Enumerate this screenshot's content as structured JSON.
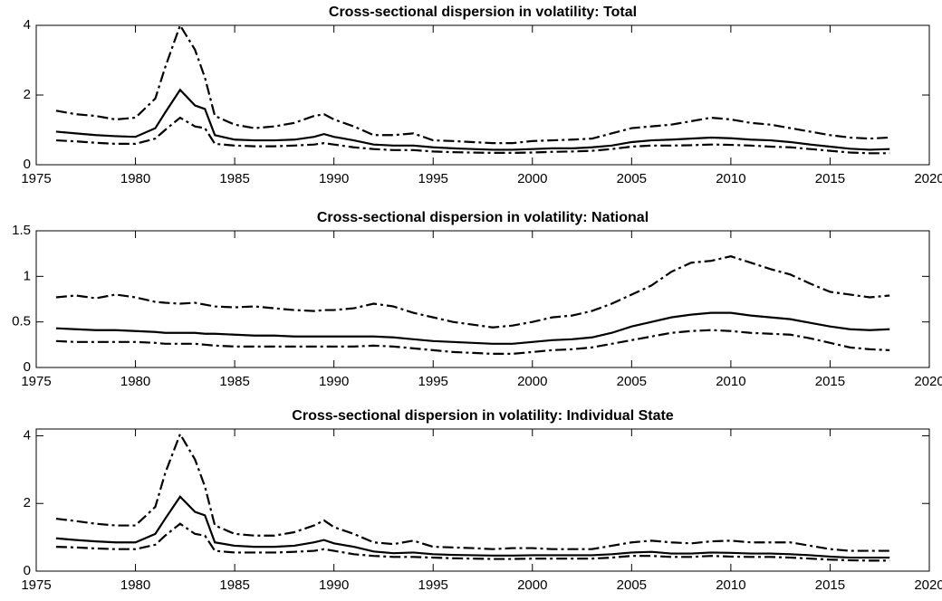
{
  "chart_data": [
    {
      "type": "line",
      "title": "Cross-sectional dispersion in volatility: Total",
      "x": [
        1976,
        1977,
        1978,
        1979,
        1980,
        1981,
        1981.5,
        1982.25,
        1983,
        1983.5,
        1984,
        1985,
        1986,
        1987,
        1988,
        1989,
        1989.5,
        1990,
        1991,
        1992,
        1993,
        1994,
        1995,
        1996,
        1997,
        1998,
        1999,
        2000,
        2001,
        2002,
        2003,
        2004,
        2005,
        2006,
        2007,
        2008,
        2009,
        2010,
        2011,
        2012,
        2013,
        2014,
        2015,
        2016,
        2017,
        2018
      ],
      "series": [
        {
          "color": "#000000",
          "dash": "dashdot",
          "values": [
            1.55,
            1.45,
            1.4,
            1.3,
            1.35,
            1.9,
            2.8,
            4.0,
            3.3,
            2.5,
            1.4,
            1.15,
            1.05,
            1.1,
            1.2,
            1.4,
            1.45,
            1.3,
            1.1,
            0.85,
            0.85,
            0.9,
            0.7,
            0.68,
            0.65,
            0.62,
            0.62,
            0.68,
            0.7,
            0.72,
            0.75,
            0.9,
            1.05,
            1.1,
            1.15,
            1.25,
            1.35,
            1.3,
            1.2,
            1.15,
            1.05,
            0.95,
            0.85,
            0.78,
            0.75,
            0.78
          ]
        },
        {
          "color": "#000000",
          "dash": "solid",
          "values": [
            0.95,
            0.9,
            0.85,
            0.82,
            0.8,
            1.05,
            1.5,
            2.15,
            1.7,
            1.6,
            0.85,
            0.72,
            0.7,
            0.7,
            0.72,
            0.8,
            0.88,
            0.8,
            0.7,
            0.58,
            0.55,
            0.55,
            0.5,
            0.47,
            0.45,
            0.43,
            0.43,
            0.45,
            0.47,
            0.47,
            0.5,
            0.55,
            0.65,
            0.7,
            0.72,
            0.75,
            0.78,
            0.76,
            0.72,
            0.7,
            0.65,
            0.58,
            0.52,
            0.46,
            0.43,
            0.45
          ]
        },
        {
          "color": "#000000",
          "dash": "dashdot",
          "values": [
            0.7,
            0.67,
            0.63,
            0.6,
            0.6,
            0.75,
            1.0,
            1.35,
            1.1,
            1.05,
            0.6,
            0.55,
            0.53,
            0.53,
            0.55,
            0.58,
            0.62,
            0.58,
            0.5,
            0.45,
            0.42,
            0.42,
            0.38,
            0.36,
            0.35,
            0.34,
            0.34,
            0.35,
            0.37,
            0.38,
            0.4,
            0.45,
            0.52,
            0.55,
            0.55,
            0.56,
            0.58,
            0.57,
            0.55,
            0.52,
            0.5,
            0.45,
            0.4,
            0.35,
            0.33,
            0.33
          ]
        }
      ],
      "xlim": [
        1975,
        2020
      ],
      "xticks": [
        1975,
        1980,
        1985,
        1990,
        1995,
        2000,
        2005,
        2010,
        2015,
        2020
      ],
      "ylim": [
        0,
        4
      ],
      "yticks": [
        0,
        2,
        4
      ]
    },
    {
      "type": "line",
      "title": "Cross-sectional dispersion in volatility: National",
      "x": [
        1976,
        1977,
        1978,
        1979,
        1980,
        1981,
        1981.5,
        1982.25,
        1983,
        1983.5,
        1984,
        1985,
        1986,
        1987,
        1988,
        1989,
        1989.5,
        1990,
        1991,
        1992,
        1993,
        1994,
        1995,
        1996,
        1997,
        1998,
        1999,
        2000,
        2001,
        2002,
        2003,
        2004,
        2005,
        2006,
        2007,
        2008,
        2009,
        2010,
        2011,
        2012,
        2013,
        2014,
        2015,
        2016,
        2017,
        2018
      ],
      "series": [
        {
          "color": "#000000",
          "dash": "dashdot",
          "values": [
            0.77,
            0.79,
            0.76,
            0.8,
            0.77,
            0.72,
            0.71,
            0.7,
            0.71,
            0.69,
            0.67,
            0.66,
            0.67,
            0.65,
            0.63,
            0.62,
            0.63,
            0.63,
            0.65,
            0.7,
            0.67,
            0.6,
            0.55,
            0.5,
            0.47,
            0.44,
            0.46,
            0.5,
            0.55,
            0.57,
            0.62,
            0.7,
            0.8,
            0.9,
            1.05,
            1.15,
            1.17,
            1.22,
            1.15,
            1.08,
            1.02,
            0.92,
            0.83,
            0.8,
            0.77,
            0.79
          ]
        },
        {
          "color": "#000000",
          "dash": "solid",
          "values": [
            0.43,
            0.42,
            0.41,
            0.41,
            0.4,
            0.39,
            0.38,
            0.38,
            0.38,
            0.37,
            0.37,
            0.36,
            0.35,
            0.35,
            0.34,
            0.34,
            0.34,
            0.34,
            0.34,
            0.34,
            0.33,
            0.31,
            0.29,
            0.28,
            0.27,
            0.26,
            0.26,
            0.28,
            0.3,
            0.31,
            0.33,
            0.38,
            0.45,
            0.5,
            0.55,
            0.58,
            0.6,
            0.6,
            0.57,
            0.55,
            0.53,
            0.49,
            0.45,
            0.42,
            0.41,
            0.42
          ]
        },
        {
          "color": "#000000",
          "dash": "dashdot",
          "values": [
            0.29,
            0.28,
            0.28,
            0.28,
            0.28,
            0.27,
            0.26,
            0.26,
            0.26,
            0.25,
            0.24,
            0.23,
            0.23,
            0.23,
            0.23,
            0.23,
            0.23,
            0.23,
            0.23,
            0.24,
            0.23,
            0.21,
            0.19,
            0.17,
            0.16,
            0.15,
            0.15,
            0.17,
            0.19,
            0.2,
            0.22,
            0.26,
            0.3,
            0.34,
            0.38,
            0.4,
            0.41,
            0.4,
            0.38,
            0.37,
            0.36,
            0.32,
            0.27,
            0.22,
            0.2,
            0.19
          ]
        }
      ],
      "xlim": [
        1975,
        2020
      ],
      "xticks": [
        1975,
        1980,
        1985,
        1990,
        1995,
        2000,
        2005,
        2010,
        2015,
        2020
      ],
      "ylim": [
        0,
        1.5
      ],
      "yticks": [
        0,
        0.5,
        1,
        1.5
      ]
    },
    {
      "type": "line",
      "title": "Cross-sectional dispersion in volatility: Individual State",
      "x": [
        1976,
        1977,
        1978,
        1979,
        1980,
        1981,
        1981.5,
        1982.25,
        1983,
        1983.5,
        1984,
        1985,
        1986,
        1987,
        1988,
        1989,
        1989.5,
        1990,
        1991,
        1992,
        1993,
        1994,
        1995,
        1996,
        1997,
        1998,
        1999,
        2000,
        2001,
        2002,
        2003,
        2004,
        2005,
        2006,
        2007,
        2008,
        2009,
        2010,
        2011,
        2012,
        2013,
        2014,
        2015,
        2016,
        2017,
        2018
      ],
      "series": [
        {
          "color": "#000000",
          "dash": "dashdot",
          "values": [
            1.55,
            1.48,
            1.4,
            1.35,
            1.35,
            1.9,
            2.9,
            4.05,
            3.3,
            2.5,
            1.35,
            1.1,
            1.05,
            1.05,
            1.15,
            1.35,
            1.5,
            1.3,
            1.1,
            0.85,
            0.8,
            0.9,
            0.72,
            0.7,
            0.68,
            0.65,
            0.68,
            0.68,
            0.65,
            0.65,
            0.65,
            0.75,
            0.85,
            0.9,
            0.85,
            0.82,
            0.88,
            0.9,
            0.85,
            0.85,
            0.85,
            0.75,
            0.65,
            0.6,
            0.6,
            0.6
          ]
        },
        {
          "color": "#000000",
          "dash": "solid",
          "values": [
            0.97,
            0.92,
            0.88,
            0.85,
            0.85,
            1.1,
            1.55,
            2.2,
            1.75,
            1.65,
            0.85,
            0.75,
            0.72,
            0.72,
            0.75,
            0.85,
            0.92,
            0.82,
            0.72,
            0.58,
            0.53,
            0.55,
            0.5,
            0.48,
            0.47,
            0.46,
            0.46,
            0.47,
            0.47,
            0.47,
            0.47,
            0.5,
            0.55,
            0.57,
            0.52,
            0.52,
            0.55,
            0.54,
            0.52,
            0.52,
            0.5,
            0.47,
            0.43,
            0.4,
            0.4,
            0.4
          ]
        },
        {
          "color": "#000000",
          "dash": "dashdot",
          "values": [
            0.72,
            0.7,
            0.67,
            0.65,
            0.65,
            0.78,
            1.05,
            1.4,
            1.1,
            1.05,
            0.6,
            0.55,
            0.55,
            0.55,
            0.57,
            0.6,
            0.65,
            0.6,
            0.5,
            0.45,
            0.42,
            0.42,
            0.4,
            0.38,
            0.37,
            0.36,
            0.36,
            0.37,
            0.37,
            0.37,
            0.37,
            0.4,
            0.45,
            0.45,
            0.42,
            0.42,
            0.45,
            0.43,
            0.42,
            0.42,
            0.4,
            0.37,
            0.34,
            0.32,
            0.31,
            0.31
          ]
        }
      ],
      "xlim": [
        1975,
        2020
      ],
      "xticks": [
        1975,
        1980,
        1985,
        1990,
        1995,
        2000,
        2005,
        2010,
        2015,
        2020
      ],
      "ylim": [
        0,
        4.2
      ],
      "yticks": [
        0,
        2,
        4
      ]
    }
  ]
}
